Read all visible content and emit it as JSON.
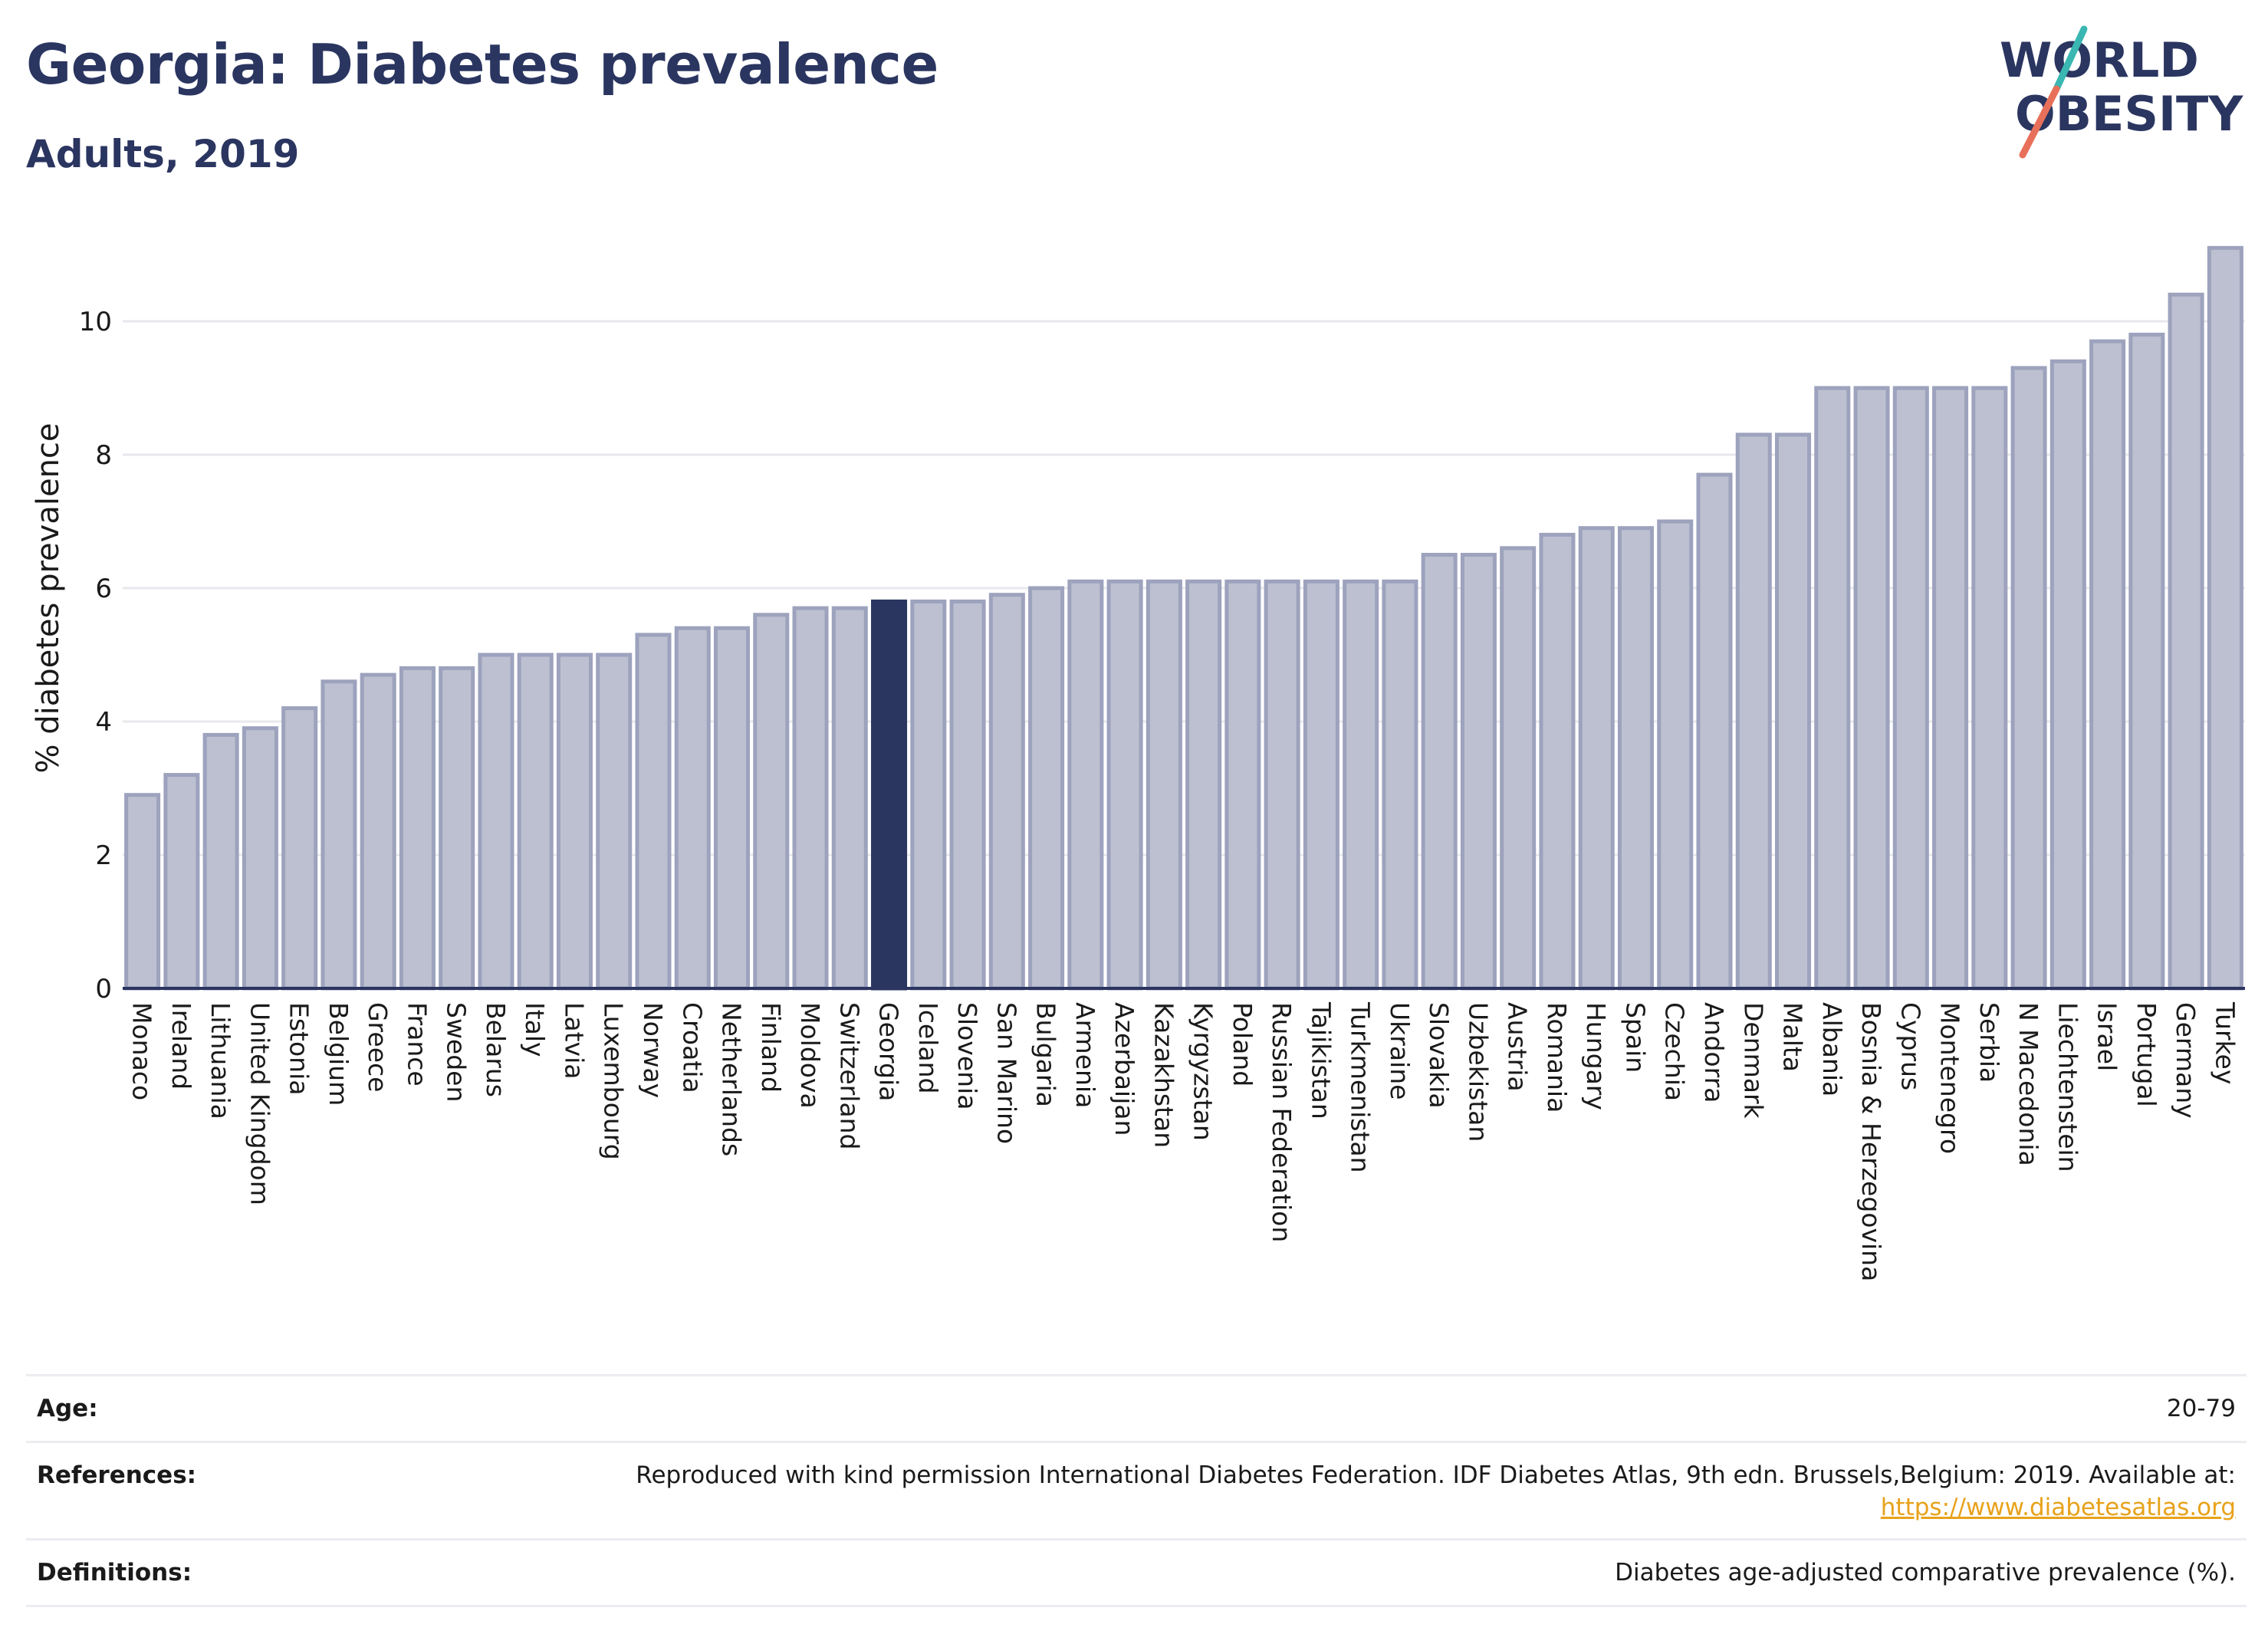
{
  "header": {
    "title": "Georgia: Diabetes prevalence",
    "subtitle": "Adults, 2019"
  },
  "logo": {
    "line1": "WORLD",
    "line2": "OBESITY",
    "colors": {
      "text": "#2a3560",
      "slash_teal": "#3ab7b2",
      "slash_coral": "#e8705a"
    }
  },
  "chart_data": {
    "type": "bar",
    "title": "Georgia: Diabetes prevalence",
    "subtitle": "Adults, 2019",
    "ylabel": "% diabetes prevalence",
    "xlabel": "",
    "ylim": [
      0,
      11.5
    ],
    "yticks": [
      0,
      2,
      4,
      6,
      8,
      10
    ],
    "grid": true,
    "highlight": "Georgia",
    "colors": {
      "bar": "#bcc0d0",
      "bar_border": "#9da2bd",
      "highlight": "#2a3560",
      "grid": "#e8e9ee",
      "axis": "#2a3560"
    },
    "categories": [
      "Monaco",
      "Ireland",
      "Lithuania",
      "United Kingdom",
      "Estonia",
      "Belgium",
      "Greece",
      "France",
      "Sweden",
      "Belarus",
      "Italy",
      "Latvia",
      "Luxembourg",
      "Norway",
      "Croatia",
      "Netherlands",
      "Finland",
      "Moldova",
      "Switzerland",
      "Georgia",
      "Iceland",
      "Slovenia",
      "San Marino",
      "Bulgaria",
      "Armenia",
      "Azerbaijan",
      "Kazakhstan",
      "Kyrgyzstan",
      "Poland",
      "Russian Federation",
      "Tajikistan",
      "Turkmenistan",
      "Ukraine",
      "Slovakia",
      "Uzbekistan",
      "Austria",
      "Romania",
      "Hungary",
      "Spain",
      "Czechia",
      "Andorra",
      "Denmark",
      "Malta",
      "Albania",
      "Bosnia & Herzegovina",
      "Cyprus",
      "Montenegro",
      "Serbia",
      "N Macedonia",
      "Liechtenstein",
      "Israel",
      "Portugal",
      "Germany",
      "Turkey"
    ],
    "values": [
      2.9,
      3.2,
      3.8,
      3.9,
      4.2,
      4.6,
      4.7,
      4.8,
      4.8,
      5.0,
      5.0,
      5.0,
      5.0,
      5.3,
      5.4,
      5.4,
      5.6,
      5.7,
      5.7,
      5.8,
      5.8,
      5.8,
      5.9,
      6.0,
      6.1,
      6.1,
      6.1,
      6.1,
      6.1,
      6.1,
      6.1,
      6.1,
      6.1,
      6.5,
      6.5,
      6.6,
      6.8,
      6.9,
      6.9,
      7.0,
      7.7,
      8.3,
      8.3,
      9.0,
      9.0,
      9.0,
      9.0,
      9.0,
      9.3,
      9.4,
      9.7,
      9.8,
      10.4,
      11.1
    ]
  },
  "meta": {
    "age_label": "Age:",
    "age_value": "20-79",
    "references_label": "References:",
    "references_text": "Reproduced with kind permission International Diabetes Federation. IDF Diabetes Atlas, 9th edn. Brussels,Belgium: 2019. Available at:",
    "references_link": "https://www.diabetesatlas.org",
    "definitions_label": "Definitions:",
    "definitions_value": "Diabetes age-adjusted comparative prevalence (%)."
  }
}
